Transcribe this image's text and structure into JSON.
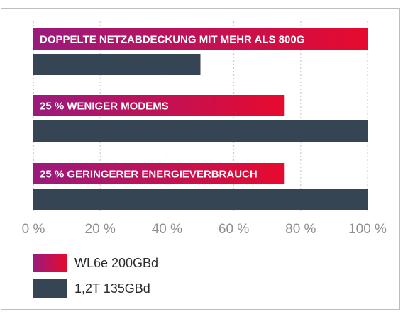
{
  "chart_data": {
    "type": "bar",
    "orientation": "horizontal",
    "categories": [
      "DOPPELTE NETZABDECKUNG MIT MEHR ALS 800G",
      "25 % WENIGER MODEMS",
      "25 % GERINGERER ENERGIEVERBRAUCH"
    ],
    "series": [
      {
        "name": "WL6e 200GBd",
        "values": [
          100,
          75,
          75
        ],
        "color_start": "#9a1a7e",
        "color_end": "#e60a2e"
      },
      {
        "name": "1,2T 135GBd",
        "values": [
          50,
          100,
          100
        ],
        "color": "#364553"
      }
    ],
    "xlim": [
      0,
      100
    ],
    "xticks": [
      0,
      20,
      40,
      60,
      80,
      100
    ],
    "xtick_labels": [
      "0 %",
      "20 %",
      "40 %",
      "60 %",
      "80 %",
      "100 %"
    ],
    "grid": "vertical dashed",
    "legend": "bottom-left",
    "title": "",
    "xlabel": "",
    "ylabel": ""
  }
}
